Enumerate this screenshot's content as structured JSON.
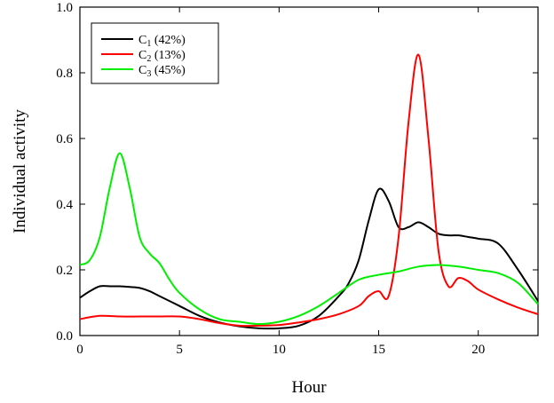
{
  "chart_data": {
    "type": "line",
    "title": "",
    "xlabel": "Hour",
    "ylabel": "Individual activity",
    "xlim": [
      0,
      23
    ],
    "ylim": [
      0,
      1.0
    ],
    "xticks": [
      0,
      5,
      10,
      15,
      20
    ],
    "xtick_labels": [
      "0",
      "5",
      "10",
      "15",
      "20"
    ],
    "yticks": [
      0,
      0.2,
      0.4,
      0.6,
      0.8,
      1.0
    ],
    "ytick_labels": [
      "0.0",
      "0.2",
      "0.4",
      "0.6",
      "0.8",
      "1.0"
    ],
    "grid": false,
    "legend_position": "top-left",
    "series": [
      {
        "name": "C1 (42%)",
        "legend_base": "C",
        "legend_sub": "1",
        "legend_suffix": " (42%)",
        "color": "#000000",
        "x": [
          0,
          0.5,
          1,
          1.5,
          2,
          2.5,
          3,
          3.5,
          4,
          5,
          6,
          7,
          8,
          9,
          10,
          11,
          12,
          13,
          13.5,
          14,
          14.5,
          15,
          15.5,
          16,
          16.5,
          17,
          17.5,
          18,
          18.5,
          19,
          19.5,
          20,
          21,
          22,
          23
        ],
        "y": [
          0.115,
          0.135,
          0.15,
          0.15,
          0.15,
          0.148,
          0.145,
          0.135,
          0.12,
          0.09,
          0.06,
          0.04,
          0.028,
          0.022,
          0.022,
          0.03,
          0.06,
          0.12,
          0.16,
          0.23,
          0.35,
          0.445,
          0.41,
          0.33,
          0.33,
          0.345,
          0.33,
          0.31,
          0.305,
          0.305,
          0.3,
          0.295,
          0.28,
          0.2,
          0.105
        ]
      },
      {
        "name": "C2 (13%)",
        "legend_base": "C",
        "legend_sub": "2",
        "legend_suffix": " (13%)",
        "color": "#ff0000",
        "x": [
          0,
          1,
          2,
          3,
          4,
          5,
          6,
          7,
          8,
          9,
          10,
          11,
          12,
          13,
          14,
          14.5,
          15,
          15.5,
          16,
          16.5,
          17,
          17.5,
          18,
          18.5,
          19,
          19.5,
          20,
          21,
          22,
          23
        ],
        "y": [
          0.05,
          0.06,
          0.058,
          0.058,
          0.058,
          0.058,
          0.05,
          0.038,
          0.03,
          0.03,
          0.032,
          0.04,
          0.05,
          0.065,
          0.09,
          0.12,
          0.135,
          0.12,
          0.3,
          0.65,
          0.855,
          0.6,
          0.26,
          0.15,
          0.175,
          0.165,
          0.14,
          0.11,
          0.085,
          0.065
        ]
      },
      {
        "name": "C3 (45%)",
        "legend_base": "C",
        "legend_sub": "3",
        "legend_suffix": " (45%)",
        "color": "#00ee00",
        "x": [
          0,
          0.5,
          1,
          1.5,
          2,
          2.5,
          3,
          3.5,
          4,
          4.5,
          5,
          6,
          7,
          8,
          9,
          10,
          11,
          12,
          13,
          14,
          15,
          16,
          17,
          18,
          19,
          20,
          21,
          22,
          23
        ],
        "y": [
          0.215,
          0.23,
          0.3,
          0.45,
          0.555,
          0.45,
          0.3,
          0.25,
          0.22,
          0.17,
          0.13,
          0.08,
          0.05,
          0.042,
          0.035,
          0.042,
          0.06,
          0.09,
          0.13,
          0.17,
          0.185,
          0.195,
          0.21,
          0.215,
          0.21,
          0.2,
          0.19,
          0.16,
          0.095
        ]
      }
    ]
  }
}
